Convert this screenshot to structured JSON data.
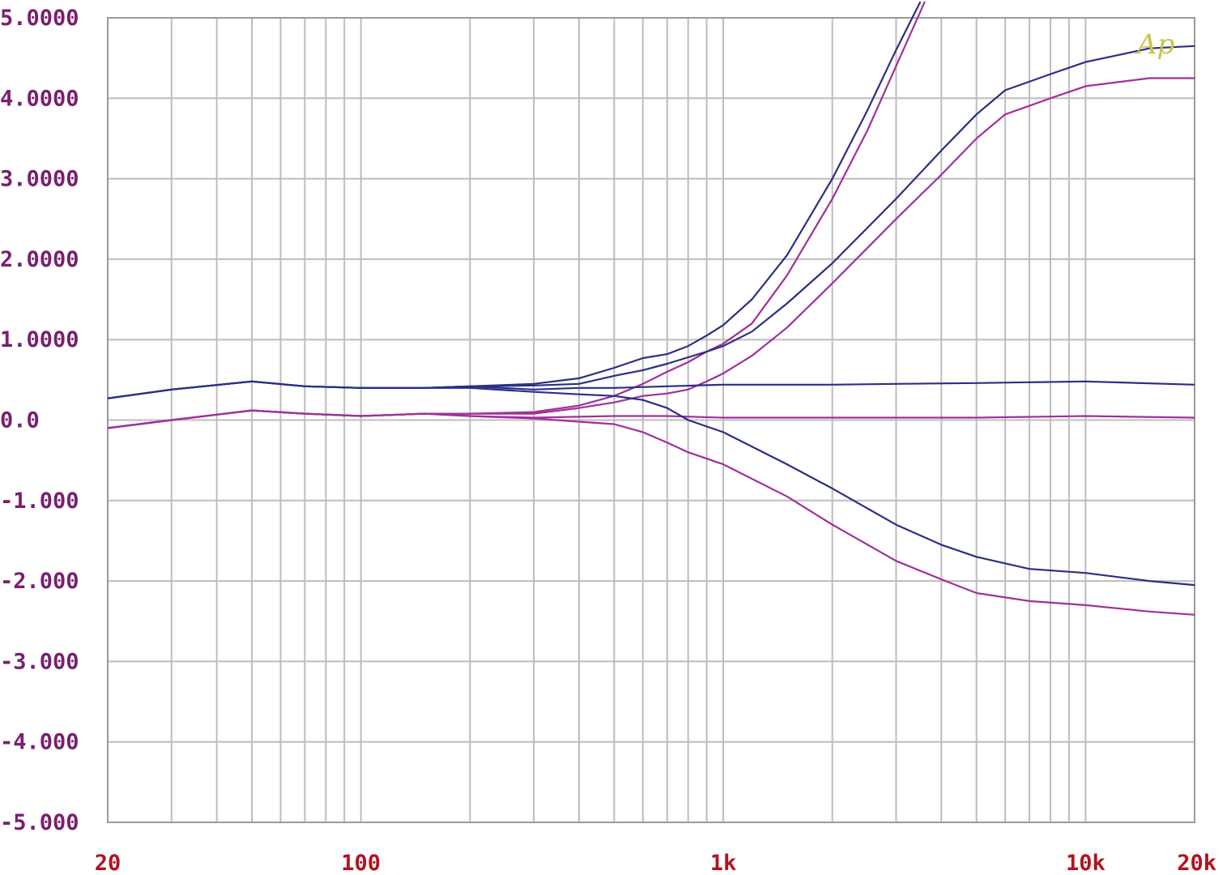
{
  "chart_data": {
    "type": "line",
    "title": "",
    "xlabel": "",
    "ylabel": "",
    "xscale": "log",
    "xlim": [
      20,
      20000
    ],
    "ylim": [
      -5,
      5
    ],
    "grid": true,
    "x_ticks": [
      {
        "value": 20,
        "label": "20"
      },
      {
        "value": 100,
        "label": "100"
      },
      {
        "value": 1000,
        "label": "1k"
      },
      {
        "value": 10000,
        "label": "10k"
      },
      {
        "value": 20000,
        "label": "20k"
      }
    ],
    "y_ticks": [
      {
        "value": 5,
        "label": "5.0000"
      },
      {
        "value": 4,
        "label": "4.0000"
      },
      {
        "value": 3,
        "label": "3.0000"
      },
      {
        "value": 2,
        "label": "2.0000"
      },
      {
        "value": 1,
        "label": "1.0000"
      },
      {
        "value": 0,
        "label": "0.0"
      },
      {
        "value": -1,
        "label": "-1.000"
      },
      {
        "value": -2,
        "label": "-2.000"
      },
      {
        "value": -3,
        "label": "-3.000"
      },
      {
        "value": -4,
        "label": "-4.000"
      },
      {
        "value": -5,
        "label": "-5.000"
      }
    ],
    "logo_text": "Ap",
    "colors": {
      "blue": "#2a2f85",
      "purple": "#a0309a",
      "grid": "#bdbdbd",
      "axis": "#9a9a9a"
    },
    "series": [
      {
        "color": "#2a2f85",
        "x": [
          20,
          30,
          50,
          70,
          100,
          150,
          200,
          300,
          400,
          500,
          600,
          700,
          800,
          900,
          1000,
          1200,
          1500,
          2000,
          2500,
          3000,
          3500
        ],
        "y": [
          0.27,
          0.38,
          0.48,
          0.42,
          0.4,
          0.4,
          0.42,
          0.45,
          0.52,
          0.65,
          0.77,
          0.82,
          0.92,
          1.05,
          1.18,
          1.5,
          2.05,
          3.0,
          3.85,
          4.6,
          5.2
        ]
      },
      {
        "color": "#a0309a",
        "x": [
          20,
          30,
          50,
          70,
          100,
          150,
          200,
          300,
          400,
          500,
          600,
          700,
          800,
          900,
          1000,
          1200,
          1500,
          2000,
          2500,
          3000,
          3600
        ],
        "y": [
          -0.1,
          0.0,
          0.12,
          0.08,
          0.05,
          0.08,
          0.08,
          0.1,
          0.18,
          0.3,
          0.45,
          0.6,
          0.72,
          0.85,
          0.95,
          1.2,
          1.8,
          2.75,
          3.6,
          4.4,
          5.2
        ]
      },
      {
        "color": "#2a2f85",
        "x": [
          20,
          30,
          50,
          70,
          100,
          150,
          200,
          300,
          400,
          500,
          600,
          700,
          800,
          900,
          1000,
          1200,
          1500,
          2000,
          3000,
          4000,
          5000,
          6000,
          8000,
          10000,
          15000,
          20000
        ],
        "y": [
          0.27,
          0.38,
          0.48,
          0.42,
          0.4,
          0.4,
          0.42,
          0.43,
          0.45,
          0.55,
          0.62,
          0.7,
          0.78,
          0.85,
          0.92,
          1.1,
          1.45,
          1.95,
          2.75,
          3.35,
          3.8,
          4.1,
          4.3,
          4.45,
          4.62,
          4.65
        ]
      },
      {
        "color": "#a0309a",
        "x": [
          20,
          30,
          50,
          70,
          100,
          150,
          200,
          300,
          400,
          500,
          600,
          700,
          800,
          900,
          1000,
          1200,
          1500,
          2000,
          3000,
          4000,
          5000,
          6000,
          8000,
          10000,
          15000,
          20000
        ],
        "y": [
          -0.1,
          0.0,
          0.12,
          0.08,
          0.05,
          0.08,
          0.08,
          0.08,
          0.15,
          0.22,
          0.3,
          0.33,
          0.38,
          0.48,
          0.58,
          0.8,
          1.15,
          1.7,
          2.5,
          3.05,
          3.5,
          3.8,
          4.0,
          4.15,
          4.25,
          4.25
        ]
      },
      {
        "color": "#2a2f85",
        "x": [
          20,
          30,
          50,
          70,
          100,
          150,
          200,
          300,
          400,
          500,
          700,
          1000,
          2000,
          3000,
          5000,
          10000,
          20000
        ],
        "y": [
          0.27,
          0.38,
          0.48,
          0.42,
          0.4,
          0.4,
          0.42,
          0.38,
          0.4,
          0.4,
          0.42,
          0.44,
          0.44,
          0.45,
          0.46,
          0.48,
          0.44
        ]
      },
      {
        "color": "#a0309a",
        "x": [
          20,
          30,
          50,
          70,
          100,
          150,
          200,
          300,
          500,
          700,
          1000,
          2000,
          5000,
          10000,
          20000
        ],
        "y": [
          -0.1,
          0.0,
          0.12,
          0.08,
          0.05,
          0.08,
          0.05,
          0.03,
          0.05,
          0.05,
          0.03,
          0.03,
          0.03,
          0.05,
          0.03
        ]
      },
      {
        "color": "#2a2f85",
        "x": [
          20,
          30,
          50,
          70,
          100,
          150,
          200,
          300,
          400,
          500,
          600,
          700,
          800,
          1000,
          1500,
          2000,
          3000,
          4000,
          5000,
          7000,
          10000,
          15000,
          20000
        ],
        "y": [
          0.27,
          0.38,
          0.48,
          0.42,
          0.4,
          0.4,
          0.4,
          0.35,
          0.32,
          0.3,
          0.25,
          0.15,
          0.0,
          -0.15,
          -0.55,
          -0.85,
          -1.3,
          -1.55,
          -1.7,
          -1.85,
          -1.9,
          -2.0,
          -2.05
        ]
      },
      {
        "color": "#a0309a",
        "x": [
          20,
          30,
          50,
          70,
          100,
          150,
          200,
          300,
          400,
          500,
          600,
          700,
          800,
          1000,
          1500,
          2000,
          3000,
          4000,
          5000,
          7000,
          10000,
          15000,
          20000
        ],
        "y": [
          -0.1,
          0.0,
          0.12,
          0.08,
          0.05,
          0.08,
          0.05,
          0.02,
          -0.02,
          -0.05,
          -0.15,
          -0.28,
          -0.4,
          -0.55,
          -0.95,
          -1.3,
          -1.75,
          -1.98,
          -2.15,
          -2.25,
          -2.3,
          -2.38,
          -2.42
        ]
      }
    ]
  }
}
